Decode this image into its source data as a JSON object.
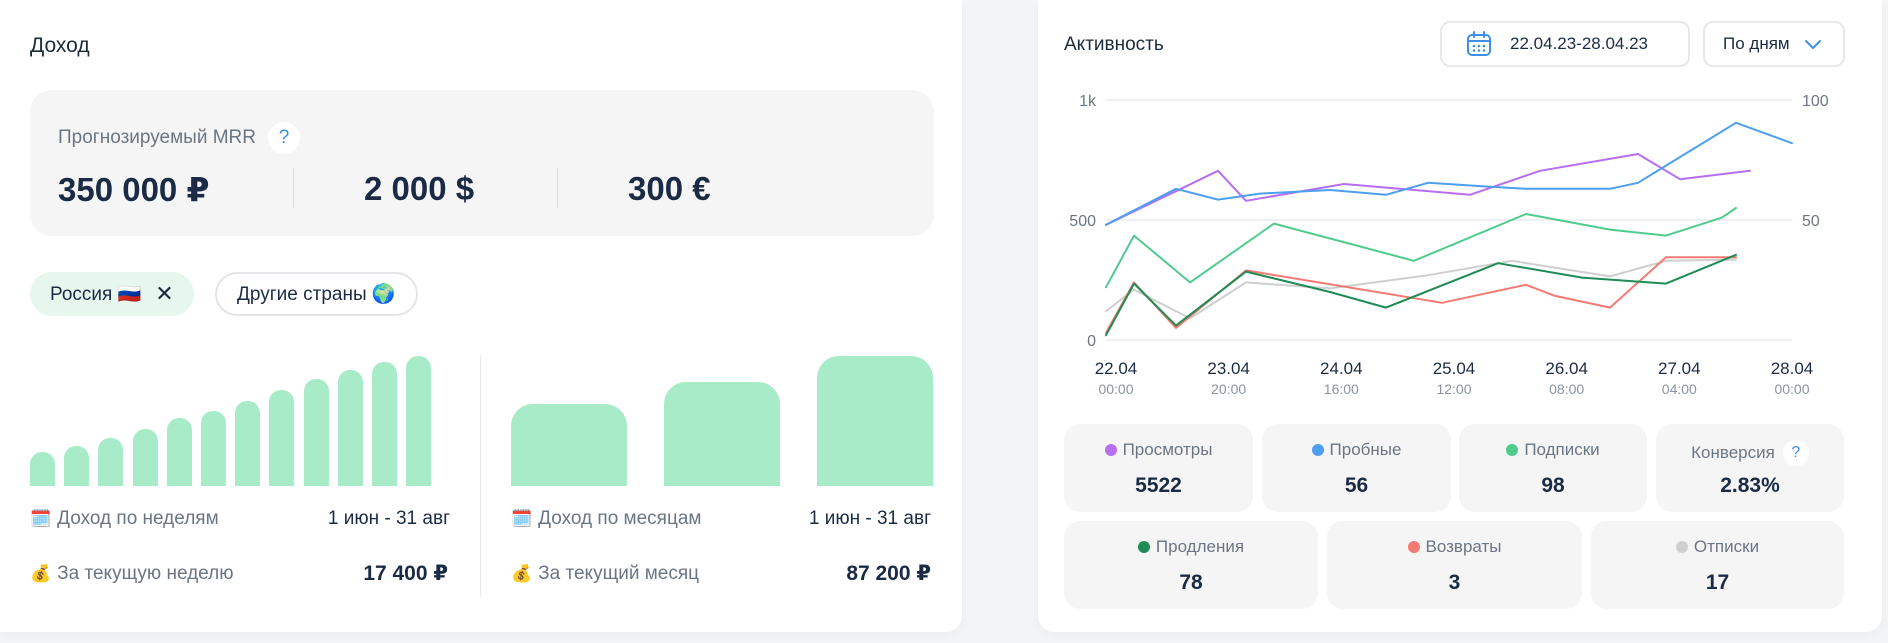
{
  "income": {
    "title": "Доход",
    "mrr": {
      "label": "Прогнозируемый MRR",
      "help": "?",
      "values": [
        "350 000 ₽",
        "2 000 $",
        "300 €"
      ]
    },
    "chips": [
      {
        "label": "Россия 🇷🇺",
        "close": "✕"
      },
      {
        "label": "Другие страны 🌍"
      }
    ],
    "weekly": {
      "title_icon": "🗓️",
      "title": "Доход по неделям",
      "range": "1 июн - 31 авг",
      "current_icon": "💰",
      "current_label": "За текущую неделю",
      "current_value": "17 400 ₽",
      "bar_levels": [
        0.26,
        0.31,
        0.37,
        0.44,
        0.52,
        0.58,
        0.65,
        0.74,
        0.82,
        0.89,
        0.95,
        1.0
      ]
    },
    "monthly": {
      "title_icon": "🗓️",
      "title": "Доход по месяцам",
      "range": "1 июн - 31 авг",
      "current_icon": "💰",
      "current_label": "За текущий месяц",
      "current_value": "87 200 ₽",
      "bar_levels": [
        0.63,
        0.8,
        1.0
      ]
    }
  },
  "activity": {
    "title": "Активность",
    "date_range": "22.04.23-28.04.23",
    "period": "По дням",
    "stats": [
      {
        "label": "Просмотры",
        "value": "5522",
        "color": "#b86ef0"
      },
      {
        "label": "Пробные",
        "value": "56",
        "color": "#4e9ff0"
      },
      {
        "label": "Подписки",
        "value": "98",
        "color": "#4fcc8d"
      },
      {
        "label": "Конверсия",
        "value": "2.83%",
        "help": "?"
      },
      {
        "label": "Продления",
        "value": "78",
        "color": "#1f8c55"
      },
      {
        "label": "Возвраты",
        "value": "3",
        "color": "#f47a72"
      },
      {
        "label": "Отписки",
        "value": "17",
        "color": "#cfcfcf"
      }
    ]
  },
  "chart_data": {
    "type": "line",
    "x_ticks": [
      {
        "date": "22.04",
        "time": "00:00"
      },
      {
        "date": "23.04",
        "time": "20:00"
      },
      {
        "date": "24.04",
        "time": "16:00"
      },
      {
        "date": "25.04",
        "time": "12:00"
      },
      {
        "date": "26.04",
        "time": "08:00"
      },
      {
        "date": "27.04",
        "time": "04:00"
      },
      {
        "date": "28.04",
        "time": "00:00"
      }
    ],
    "left_axis": {
      "ticks": [
        "0",
        "500",
        "1k"
      ],
      "ylim": [
        0,
        1000
      ]
    },
    "right_axis": {
      "ticks": [
        "50",
        "100"
      ],
      "ylim": [
        0,
        100
      ]
    },
    "grid": true,
    "x": [
      0,
      0.5,
      1,
      1.5,
      2,
      2.5,
      3,
      3.5,
      4,
      4.5,
      5,
      5.5,
      6,
      6.5,
      7,
      7.5,
      8,
      8.5,
      9,
      9.5,
      10,
      10.5,
      11,
      11.5,
      12,
      12.5,
      13,
      13.5,
      14
    ],
    "series": [
      {
        "name": "Просмотры",
        "color": "#b86ef0",
        "axis": "left",
        "points": [
          [
            0,
            480
          ],
          [
            2.5,
            620
          ],
          [
            4,
            705
          ],
          [
            5,
            580
          ],
          [
            8.5,
            650
          ],
          [
            13,
            605
          ],
          [
            15.5,
            705
          ],
          [
            19,
            775
          ],
          [
            20.5,
            670
          ],
          [
            23,
            705
          ]
        ]
      },
      {
        "name": "Пробные",
        "color": "#4e9ff0",
        "axis": "left",
        "points": [
          [
            0,
            480
          ],
          [
            2.5,
            630
          ],
          [
            4,
            585
          ],
          [
            5.5,
            610
          ],
          [
            8,
            625
          ],
          [
            10,
            605
          ],
          [
            11.5,
            655
          ],
          [
            13.5,
            640
          ],
          [
            15,
            630
          ],
          [
            18,
            630
          ],
          [
            19,
            655
          ],
          [
            22.5,
            905
          ],
          [
            24.5,
            820
          ]
        ]
      },
      {
        "name": "Подписки",
        "color": "#4fcc8d",
        "axis": "left",
        "points": [
          [
            0,
            220
          ],
          [
            1,
            435
          ],
          [
            3,
            240
          ],
          [
            6,
            485
          ],
          [
            11,
            330
          ],
          [
            15,
            525
          ],
          [
            18,
            460
          ],
          [
            20,
            435
          ],
          [
            22,
            510
          ],
          [
            22.5,
            550
          ]
        ]
      },
      {
        "name": "Продления",
        "color": "#1f8c55",
        "axis": "left",
        "points": [
          [
            0,
            20
          ],
          [
            1,
            235
          ],
          [
            2.5,
            60
          ],
          [
            5,
            285
          ],
          [
            8,
            200
          ],
          [
            10,
            135
          ],
          [
            14,
            320
          ],
          [
            17,
            260
          ],
          [
            20,
            235
          ],
          [
            22.5,
            355
          ]
        ]
      },
      {
        "name": "Возвраты",
        "color": "#f47a72",
        "axis": "left",
        "points": [
          [
            0,
            30
          ],
          [
            1,
            240
          ],
          [
            2.5,
            50
          ],
          [
            5,
            290
          ],
          [
            12,
            155
          ],
          [
            15,
            230
          ],
          [
            16,
            185
          ],
          [
            18,
            135
          ],
          [
            20,
            345
          ],
          [
            22.5,
            345
          ]
        ]
      },
      {
        "name": "Отписки",
        "color": "#cfcfcf",
        "axis": "left",
        "points": [
          [
            0,
            120
          ],
          [
            1,
            210
          ],
          [
            3,
            90
          ],
          [
            5,
            240
          ],
          [
            8,
            215
          ],
          [
            11.5,
            270
          ],
          [
            14.5,
            330
          ],
          [
            18,
            265
          ],
          [
            20,
            330
          ],
          [
            22.5,
            335
          ]
        ]
      }
    ]
  }
}
